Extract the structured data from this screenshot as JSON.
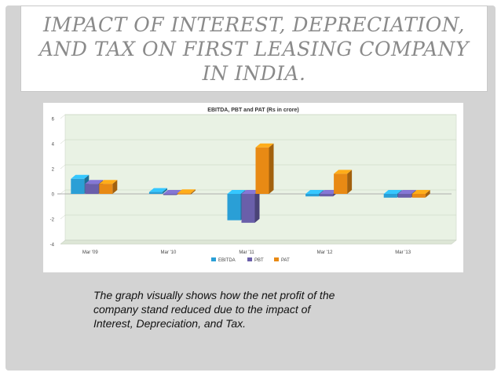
{
  "slide": {
    "title": "IMPACT OF INTEREST, DEPRECIATION, AND TAX ON FIRST LEASING COMPANY IN INDIA.",
    "caption": "The graph visually shows how the net profit of the company stand reduced due to the impact of Interest, Depreciation, and Tax."
  },
  "colors": {
    "slide_bg": "#d3d3d3",
    "title_text": "#8a8a8a",
    "EBITDA": "#2a9fd6",
    "PBT": "#6a5faa",
    "PAT": "#e88a14"
  },
  "chart_data": {
    "type": "bar",
    "title": "EBITDA, PBT and PAT (Rs in crore)",
    "categories": [
      "Mar '09",
      "Mar '10",
      "Mar '11",
      "Mar '12",
      "Mar '13"
    ],
    "series": [
      {
        "name": "EBITDA",
        "color": "#2a9fd6",
        "values": [
          1.2,
          0.15,
          -2.1,
          -0.2,
          -0.3
        ]
      },
      {
        "name": "PBT",
        "color": "#6a5faa",
        "values": [
          0.8,
          -0.05,
          -2.3,
          -0.2,
          -0.3
        ]
      },
      {
        "name": "PAT",
        "color": "#e88a14",
        "values": [
          0.8,
          0.05,
          3.7,
          1.6,
          -0.3
        ]
      }
    ],
    "ylim": [
      -4,
      6
    ],
    "yticks": [
      6,
      4,
      2,
      0,
      -2,
      -4
    ],
    "xlabel": "",
    "ylabel": "",
    "grid": true,
    "legend": "bottom",
    "style": "3d"
  }
}
